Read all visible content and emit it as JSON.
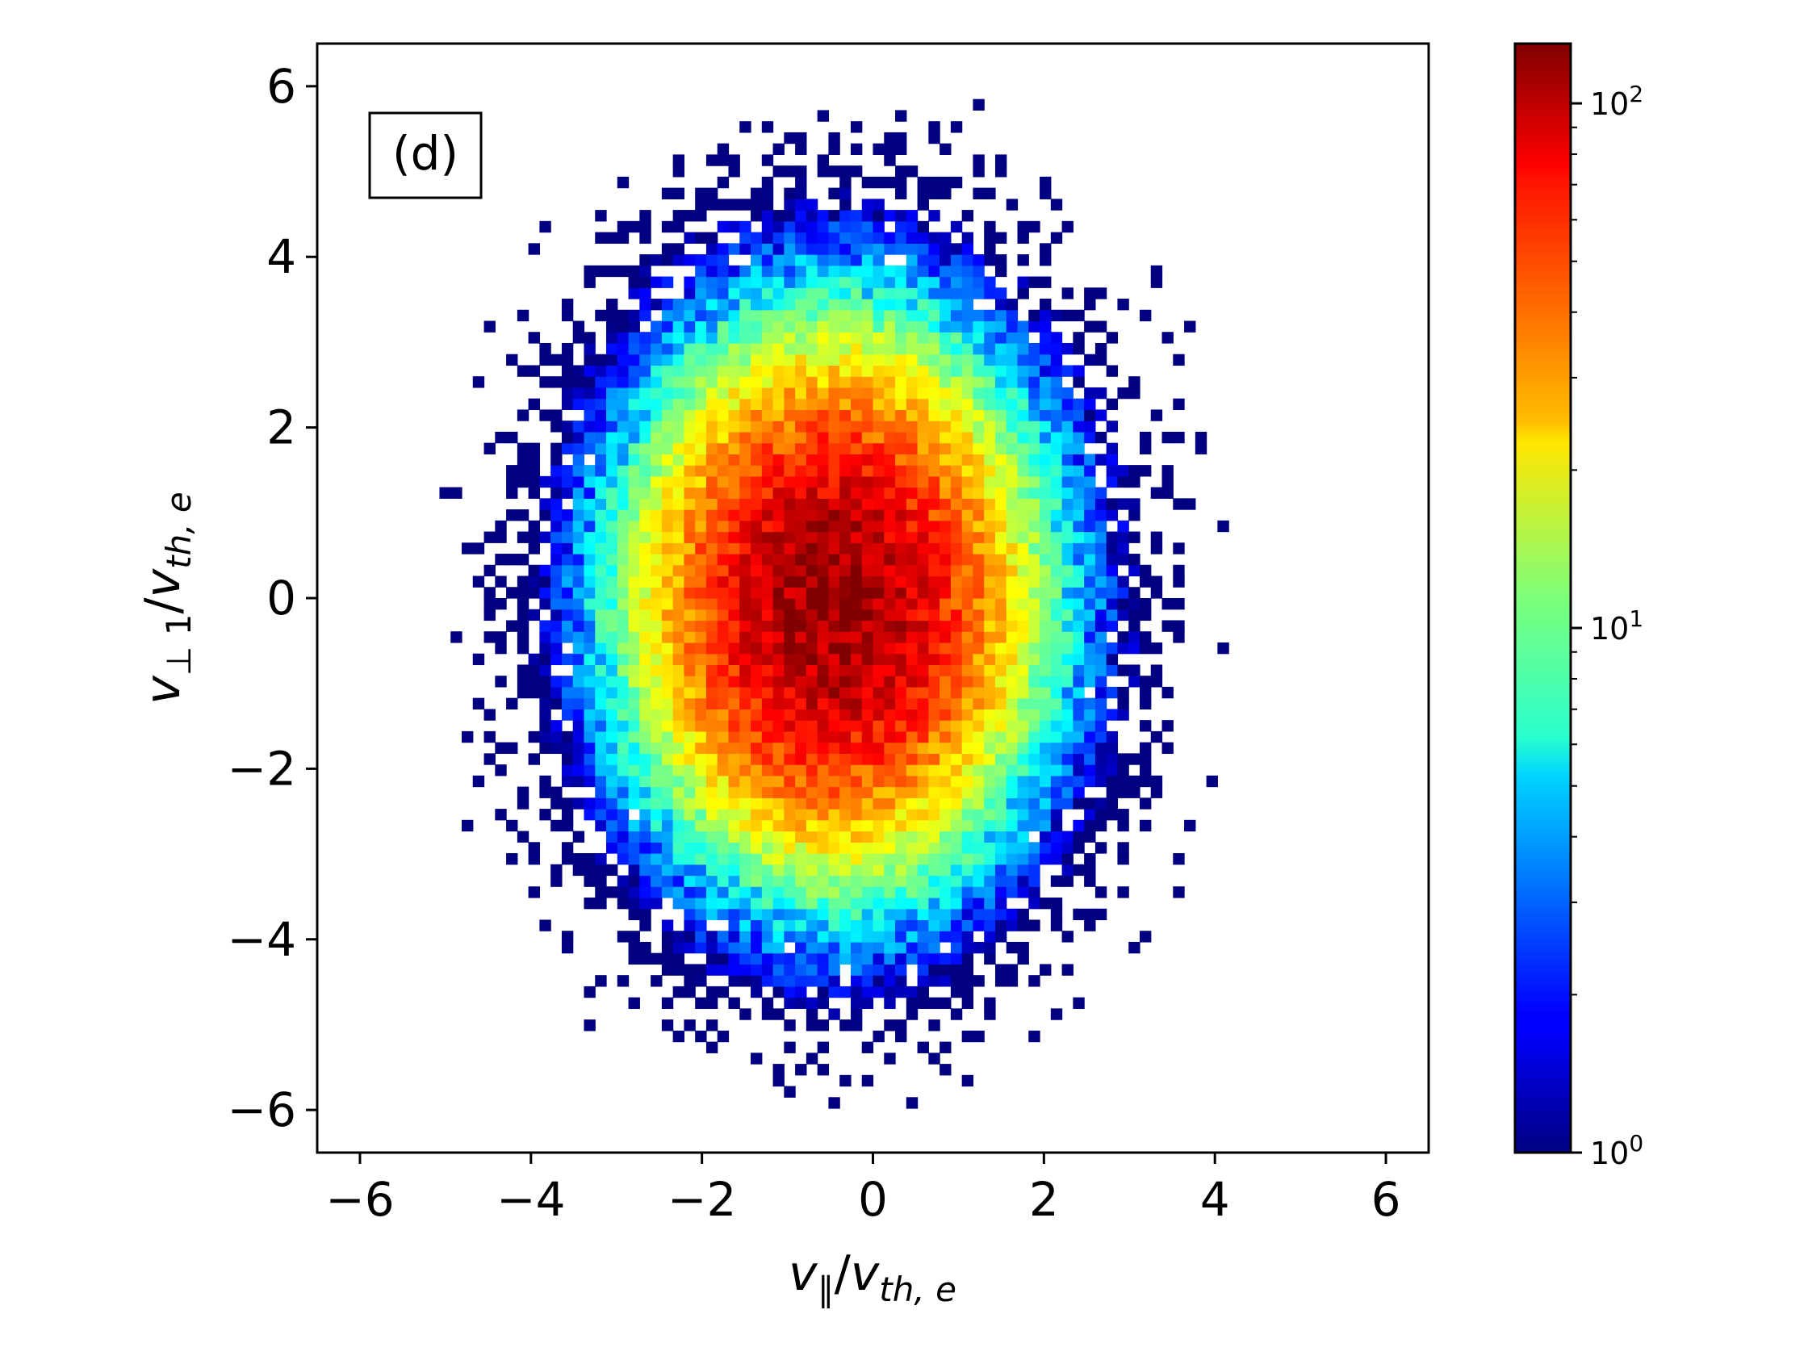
{
  "chart_data": {
    "type": "heatmap",
    "title": "",
    "panel_label": "(d)",
    "xlabel": {
      "base": "v",
      "sub": "∥",
      "slash": "/",
      "base2": "v",
      "sub2": "th, e"
    },
    "ylabel": {
      "base": "v",
      "sub": "⊥ 1",
      "slash": "/",
      "base2": "v",
      "sub2": "th, e"
    },
    "xlim": [
      -6.5,
      6.5
    ],
    "ylim": [
      -6.5,
      6.5
    ],
    "xticks": [
      -6,
      -4,
      -2,
      0,
      2,
      4,
      6
    ],
    "yticks": [
      -6,
      -4,
      -2,
      0,
      2,
      4,
      6
    ],
    "xtick_labels": [
      "−6",
      "−4",
      "−2",
      "0",
      "2",
      "4",
      "6"
    ],
    "ytick_labels": [
      "−6",
      "−4",
      "−2",
      "0",
      "2",
      "4",
      "6"
    ],
    "bins": 100,
    "bin_width": 0.13,
    "distribution": {
      "kind": "bivariate-gaussian-counts",
      "peak_count": 120,
      "center": [
        -0.4,
        0.0
      ],
      "sigma_parallel": 1.15,
      "sigma_perp": 1.55,
      "support_radius": [
        6.2,
        6.0
      ]
    },
    "colorbar": {
      "scale": "log",
      "colormap": "jet",
      "min": 1,
      "max": 130,
      "tick_values": [
        1,
        10,
        100
      ],
      "tick_labels": [
        {
          "base": "10",
          "exp": "0"
        },
        {
          "base": "10",
          "exp": "1"
        },
        {
          "base": "10",
          "exp": "2"
        }
      ],
      "minor_ticks": true
    },
    "grid": false,
    "legend": "none"
  }
}
